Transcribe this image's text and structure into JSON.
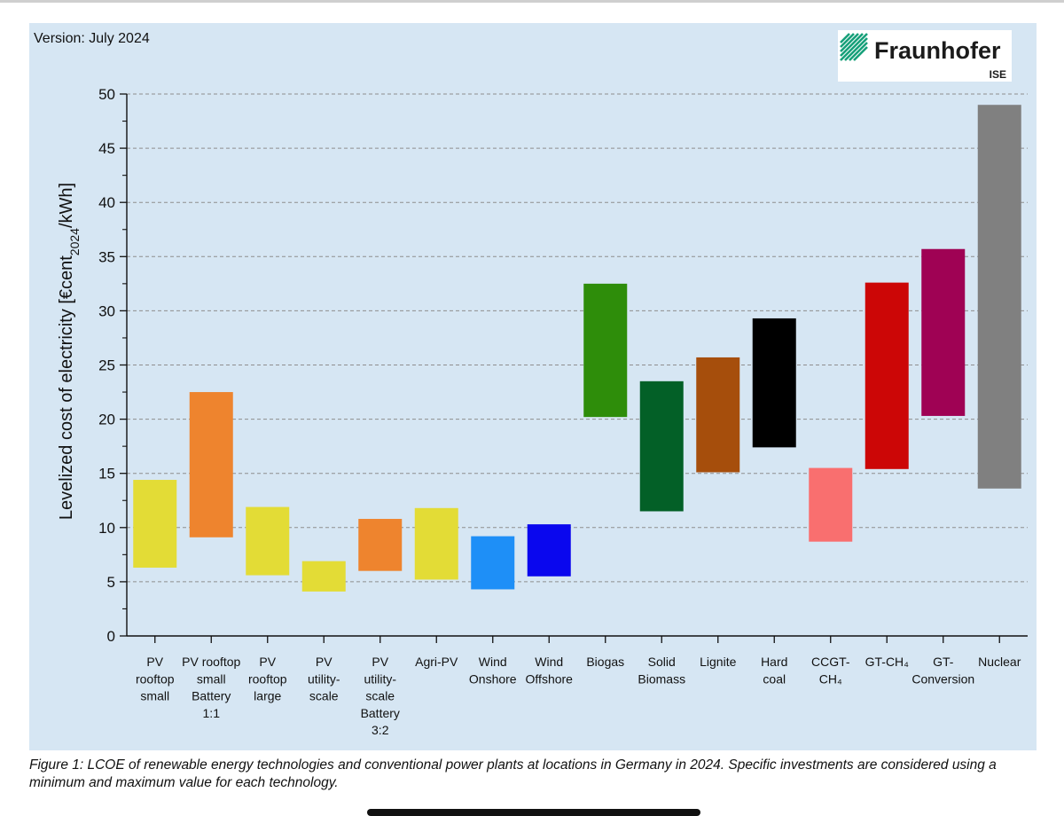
{
  "version_label": "Version: July 2024",
  "logo": {
    "name": "Fraunhofer",
    "sub": "ISE",
    "color": "#17a07a"
  },
  "caption": "Figure 1:  LCOE of renewable energy technologies and conventional power plants at locations in Germany in 2024. Specific investments are considered using a minimum and maximum value for each technology.",
  "chart_data": {
    "type": "bar",
    "subtype": "floating-range",
    "title": "",
    "xlabel": "",
    "ylabel": {
      "main": "Levelized cost of electricity [€cent",
      "sub": "2024",
      "tail": "/kWh]"
    },
    "ylim": [
      0,
      50
    ],
    "yticks": [
      0,
      5,
      10,
      15,
      20,
      25,
      30,
      35,
      40,
      45,
      50
    ],
    "grid": true,
    "bars": [
      {
        "label": [
          "PV",
          "rooftop",
          "small"
        ],
        "min": 6.3,
        "max": 14.4,
        "color": "#e3dc36"
      },
      {
        "label": [
          "PV rooftop",
          "small",
          "Battery",
          "1:1"
        ],
        "min": 9.1,
        "max": 22.5,
        "color": "#ee842e"
      },
      {
        "label": [
          "PV",
          "rooftop",
          "large"
        ],
        "min": 5.6,
        "max": 11.9,
        "color": "#e3dc36"
      },
      {
        "label": [
          "PV",
          "utility-",
          "scale"
        ],
        "min": 4.1,
        "max": 6.9,
        "color": "#e3dc36"
      },
      {
        "label": [
          "PV",
          "utility-",
          "scale",
          "Battery",
          "3:2"
        ],
        "min": 6.0,
        "max": 10.8,
        "color": "#ee842e"
      },
      {
        "label": [
          "Agri-PV"
        ],
        "min": 5.2,
        "max": 11.8,
        "color": "#e3dc36"
      },
      {
        "label": [
          "Wind",
          "Onshore"
        ],
        "min": 4.3,
        "max": 9.2,
        "color": "#1e8ff7"
      },
      {
        "label": [
          "Wind",
          "Offshore"
        ],
        "min": 5.5,
        "max": 10.3,
        "color": "#0a07ee"
      },
      {
        "label": [
          "Biogas"
        ],
        "min": 20.2,
        "max": 32.5,
        "color": "#2e8d0a"
      },
      {
        "label": [
          "Solid",
          "Biomass"
        ],
        "min": 11.5,
        "max": 23.5,
        "color": "#036027"
      },
      {
        "label": [
          "Lignite"
        ],
        "min": 15.1,
        "max": 25.7,
        "color": "#a64e0c"
      },
      {
        "label": [
          "Hard",
          "coal"
        ],
        "min": 17.4,
        "max": 29.3,
        "color": "#000000"
      },
      {
        "label": [
          "CCGT-",
          "CH₄"
        ],
        "min": 8.7,
        "max": 15.5,
        "color": "#f96f6f"
      },
      {
        "label": [
          "GT-CH₄"
        ],
        "min": 15.4,
        "max": 32.6,
        "color": "#cc0606"
      },
      {
        "label": [
          "GT-",
          "Conversion"
        ],
        "min": 20.3,
        "max": 35.7,
        "color": "#9f0254"
      },
      {
        "label": [
          "Nuclear"
        ],
        "min": 13.6,
        "max": 49.0,
        "color": "#808080"
      }
    ]
  }
}
